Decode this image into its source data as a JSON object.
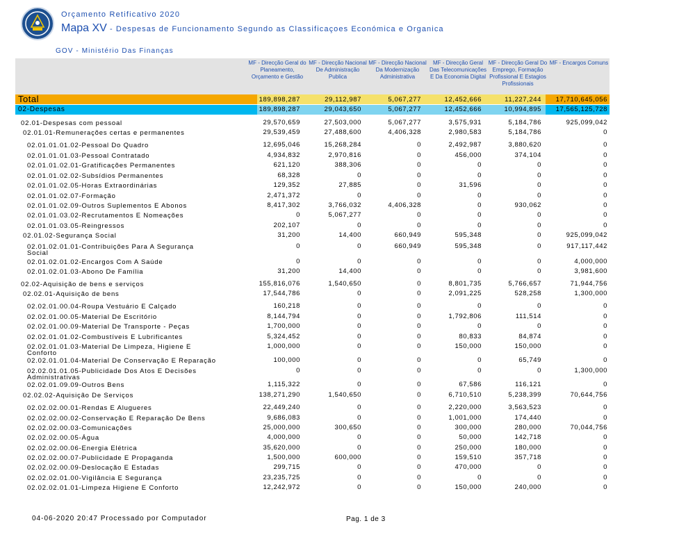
{
  "header": {
    "subtitle": "Orçamento Retificativo 2020",
    "title_main": "Mapa XV",
    "title_sub": " - Despesas de Funcionamento Segundo as Classificaçoes Económica e Organica",
    "ministry": "GOV - Ministério Das Finanças"
  },
  "columns": [
    "MF - Direcção Geral do Planeamento, Orçamento e Gestão",
    "MF - Direcção Nacional De Administração Publica",
    "MF - Direcção Nacional Da Modernização Administrativa",
    "MF - Direcção Geral Das Telecomunicações E Da Economia Digital",
    "MF - Direcção Geral Do Emprego, Formação Profissional E Estagios Profissionais",
    "MF - Encargos Comuns"
  ],
  "total": {
    "label": "Total",
    "values": [
      "189,898,287",
      "29,112,987",
      "5,067,277",
      "12,452,666",
      "11,227,244",
      "17,710,645,056"
    ]
  },
  "despesas": {
    "label": "02-Despesas",
    "values": [
      "189,898,287",
      "29,043,650",
      "5,067,277",
      "12,452,666",
      "10,994,895",
      "17,565,125,728"
    ]
  },
  "rows": [
    {
      "label": "02.01-Despesas com pessoal",
      "indent": 0,
      "values": [
        "29,570,659",
        "27,503,000",
        "5,067,277",
        "3,575,931",
        "5,184,786",
        "925,099,042"
      ]
    },
    {
      "label": "02.01.01-Remunerações certas e permanentes",
      "indent": 1,
      "values": [
        "29,539,459",
        "27,488,600",
        "4,406,328",
        "2,980,583",
        "5,184,786",
        "0"
      ]
    },
    {
      "label": "02.01.01.01.02-Pessoal Do Quadro",
      "indent": 2,
      "values": [
        "12,695,046",
        "15,268,284",
        "0",
        "2,492,987",
        "3,880,620",
        "0"
      ]
    },
    {
      "label": "02.01.01.01.03-Pessoal Contratado",
      "indent": 2,
      "values": [
        "4,934,832",
        "2,970,816",
        "0",
        "456,000",
        "374,104",
        "0"
      ]
    },
    {
      "label": "02.01.01.02.01-Gratificações Permanentes",
      "indent": 2,
      "values": [
        "621,120",
        "388,306",
        "0",
        "0",
        "0",
        "0"
      ]
    },
    {
      "label": "02.01.01.02.02-Subsídios Permanentes",
      "indent": 2,
      "values": [
        "68,328",
        "0",
        "0",
        "0",
        "0",
        "0"
      ]
    },
    {
      "label": "02.01.01.02.05-Horas Extraordinárias",
      "indent": 2,
      "values": [
        "129,352",
        "27,885",
        "0",
        "31,596",
        "0",
        "0"
      ]
    },
    {
      "label": "02.01.01.02.07-Formação",
      "indent": 2,
      "values": [
        "2,471,372",
        "0",
        "0",
        "0",
        "0",
        "0"
      ]
    },
    {
      "label": "02.01.01.02.09-Outros Suplementos E Abonos",
      "indent": 2,
      "values": [
        "8,417,302",
        "3,766,032",
        "4,406,328",
        "0",
        "930,062",
        "0"
      ]
    },
    {
      "label": "02.01.01.03.02-Recrutamentos E Nomeações",
      "indent": 2,
      "values": [
        "0",
        "5,067,277",
        "0",
        "0",
        "0",
        "0"
      ]
    },
    {
      "label": "02.01.01.03.05-Reingressos",
      "indent": 2,
      "values": [
        "202,107",
        "0",
        "0",
        "0",
        "0",
        "0"
      ]
    },
    {
      "label": "02.01.02-Segurança Social",
      "indent": 1,
      "values": [
        "31,200",
        "14,400",
        "660,949",
        "595,348",
        "0",
        "925,099,042"
      ]
    },
    {
      "label": "02.01.02.01.01-Contribuições Para A Segurança\nSocial",
      "indent": 2,
      "values": [
        "0",
        "0",
        "660,949",
        "595,348",
        "0",
        "917,117,442"
      ]
    },
    {
      "label": "02.01.02.01.02-Encargos Com A Saúde",
      "indent": 2,
      "values": [
        "0",
        "0",
        "0",
        "0",
        "0",
        "4,000,000"
      ]
    },
    {
      "label": "02.01.02.01.03-Abono De Família",
      "indent": 2,
      "values": [
        "31,200",
        "14,400",
        "0",
        "0",
        "0",
        "3,981,600"
      ]
    },
    {
      "label": "02.02-Aquisição de bens e serviços",
      "indent": 0,
      "values": [
        "155,816,076",
        "1,540,650",
        "0",
        "8,801,735",
        "5,766,657",
        "71,944,756"
      ]
    },
    {
      "label": "02.02.01-Aquisição de bens",
      "indent": 1,
      "values": [
        "17,544,786",
        "0",
        "0",
        "2,091,225",
        "528,258",
        "1,300,000"
      ]
    },
    {
      "label": "02.02.01.00.04-Roupa Vestuário E Calçado",
      "indent": 2,
      "values": [
        "160,218",
        "0",
        "0",
        "0",
        "0",
        "0"
      ]
    },
    {
      "label": "02.02.01.00.05-Material De Escritório",
      "indent": 2,
      "values": [
        "8,144,794",
        "0",
        "0",
        "1,792,806",
        "111,514",
        "0"
      ]
    },
    {
      "label": "02.02.01.00.09-Material De Transporte - Peças",
      "indent": 2,
      "values": [
        "1,700,000",
        "0",
        "0",
        "0",
        "0",
        "0"
      ]
    },
    {
      "label": "02.02.01.01.02-Combustíveis E Lubrificantes",
      "indent": 2,
      "values": [
        "5,324,452",
        "0",
        "0",
        "80,833",
        "84,874",
        "0"
      ]
    },
    {
      "label": "02.02.01.01.03-Material De Limpeza, Higiene E\nConforto",
      "indent": 2,
      "values": [
        "1,000,000",
        "0",
        "0",
        "150,000",
        "150,000",
        "0"
      ]
    },
    {
      "label": "02.02.01.01.04-Material De Conservação E Reparação",
      "indent": 2,
      "values": [
        "100,000",
        "0",
        "0",
        "0",
        "65,749",
        "0"
      ]
    },
    {
      "label": "02.02.01.01.05-Publicidade Dos Atos E Decisões\nAdministrativas",
      "indent": 2,
      "values": [
        "0",
        "0",
        "0",
        "0",
        "0",
        "1,300,000"
      ]
    },
    {
      "label": "02.02.01.09.09-Outros Bens",
      "indent": 2,
      "values": [
        "1,115,322",
        "0",
        "0",
        "67,586",
        "116,121",
        "0"
      ]
    },
    {
      "label": "02.02.02-Aquisição De Serviços",
      "indent": 1,
      "values": [
        "138,271,290",
        "1,540,650",
        "0",
        "6,710,510",
        "5,238,399",
        "70,644,756"
      ]
    },
    {
      "label": "02.02.02.00.01-Rendas E Alugueres",
      "indent": 2,
      "values": [
        "22,449,240",
        "0",
        "0",
        "2,220,000",
        "3,563,523",
        "0"
      ]
    },
    {
      "label": "02.02.02.00.02-Conservação E Reparação De Bens",
      "indent": 2,
      "values": [
        "9,686,083",
        "0",
        "0",
        "1,001,000",
        "174,440",
        "0"
      ]
    },
    {
      "label": "02.02.02.00.03-Comunicações",
      "indent": 2,
      "values": [
        "25,000,000",
        "300,650",
        "0",
        "300,000",
        "280,000",
        "70,044,756"
      ]
    },
    {
      "label": "02.02.02.00.05-Água",
      "indent": 2,
      "values": [
        "4,000,000",
        "0",
        "0",
        "50,000",
        "142,718",
        "0"
      ]
    },
    {
      "label": "02.02.02.00.06-Energia Elétrica",
      "indent": 2,
      "values": [
        "35,620,000",
        "0",
        "0",
        "250,000",
        "180,000",
        "0"
      ]
    },
    {
      "label": "02.02.02.00.07-Publicidade E Propaganda",
      "indent": 2,
      "values": [
        "1,500,000",
        "600,000",
        "0",
        "159,510",
        "357,718",
        "0"
      ]
    },
    {
      "label": "02.02.02.00.09-Deslocação E Estadas",
      "indent": 2,
      "values": [
        "299,715",
        "0",
        "0",
        "470,000",
        "0",
        "0"
      ]
    },
    {
      "label": "02.02.02.01.00-Vigilância E Segurança",
      "indent": 2,
      "values": [
        "23,235,725",
        "0",
        "0",
        "0",
        "0",
        "0"
      ]
    },
    {
      "label": "02.02.02.01.01-Limpeza Higiene E Conforto",
      "indent": 2,
      "values": [
        "12,242,972",
        "0",
        "0",
        "150,000",
        "240,000",
        "0"
      ]
    }
  ],
  "footer": {
    "date": "04-06-2020 20:47 Processado por Computador",
    "page": "Pag. 1 de 3"
  }
}
